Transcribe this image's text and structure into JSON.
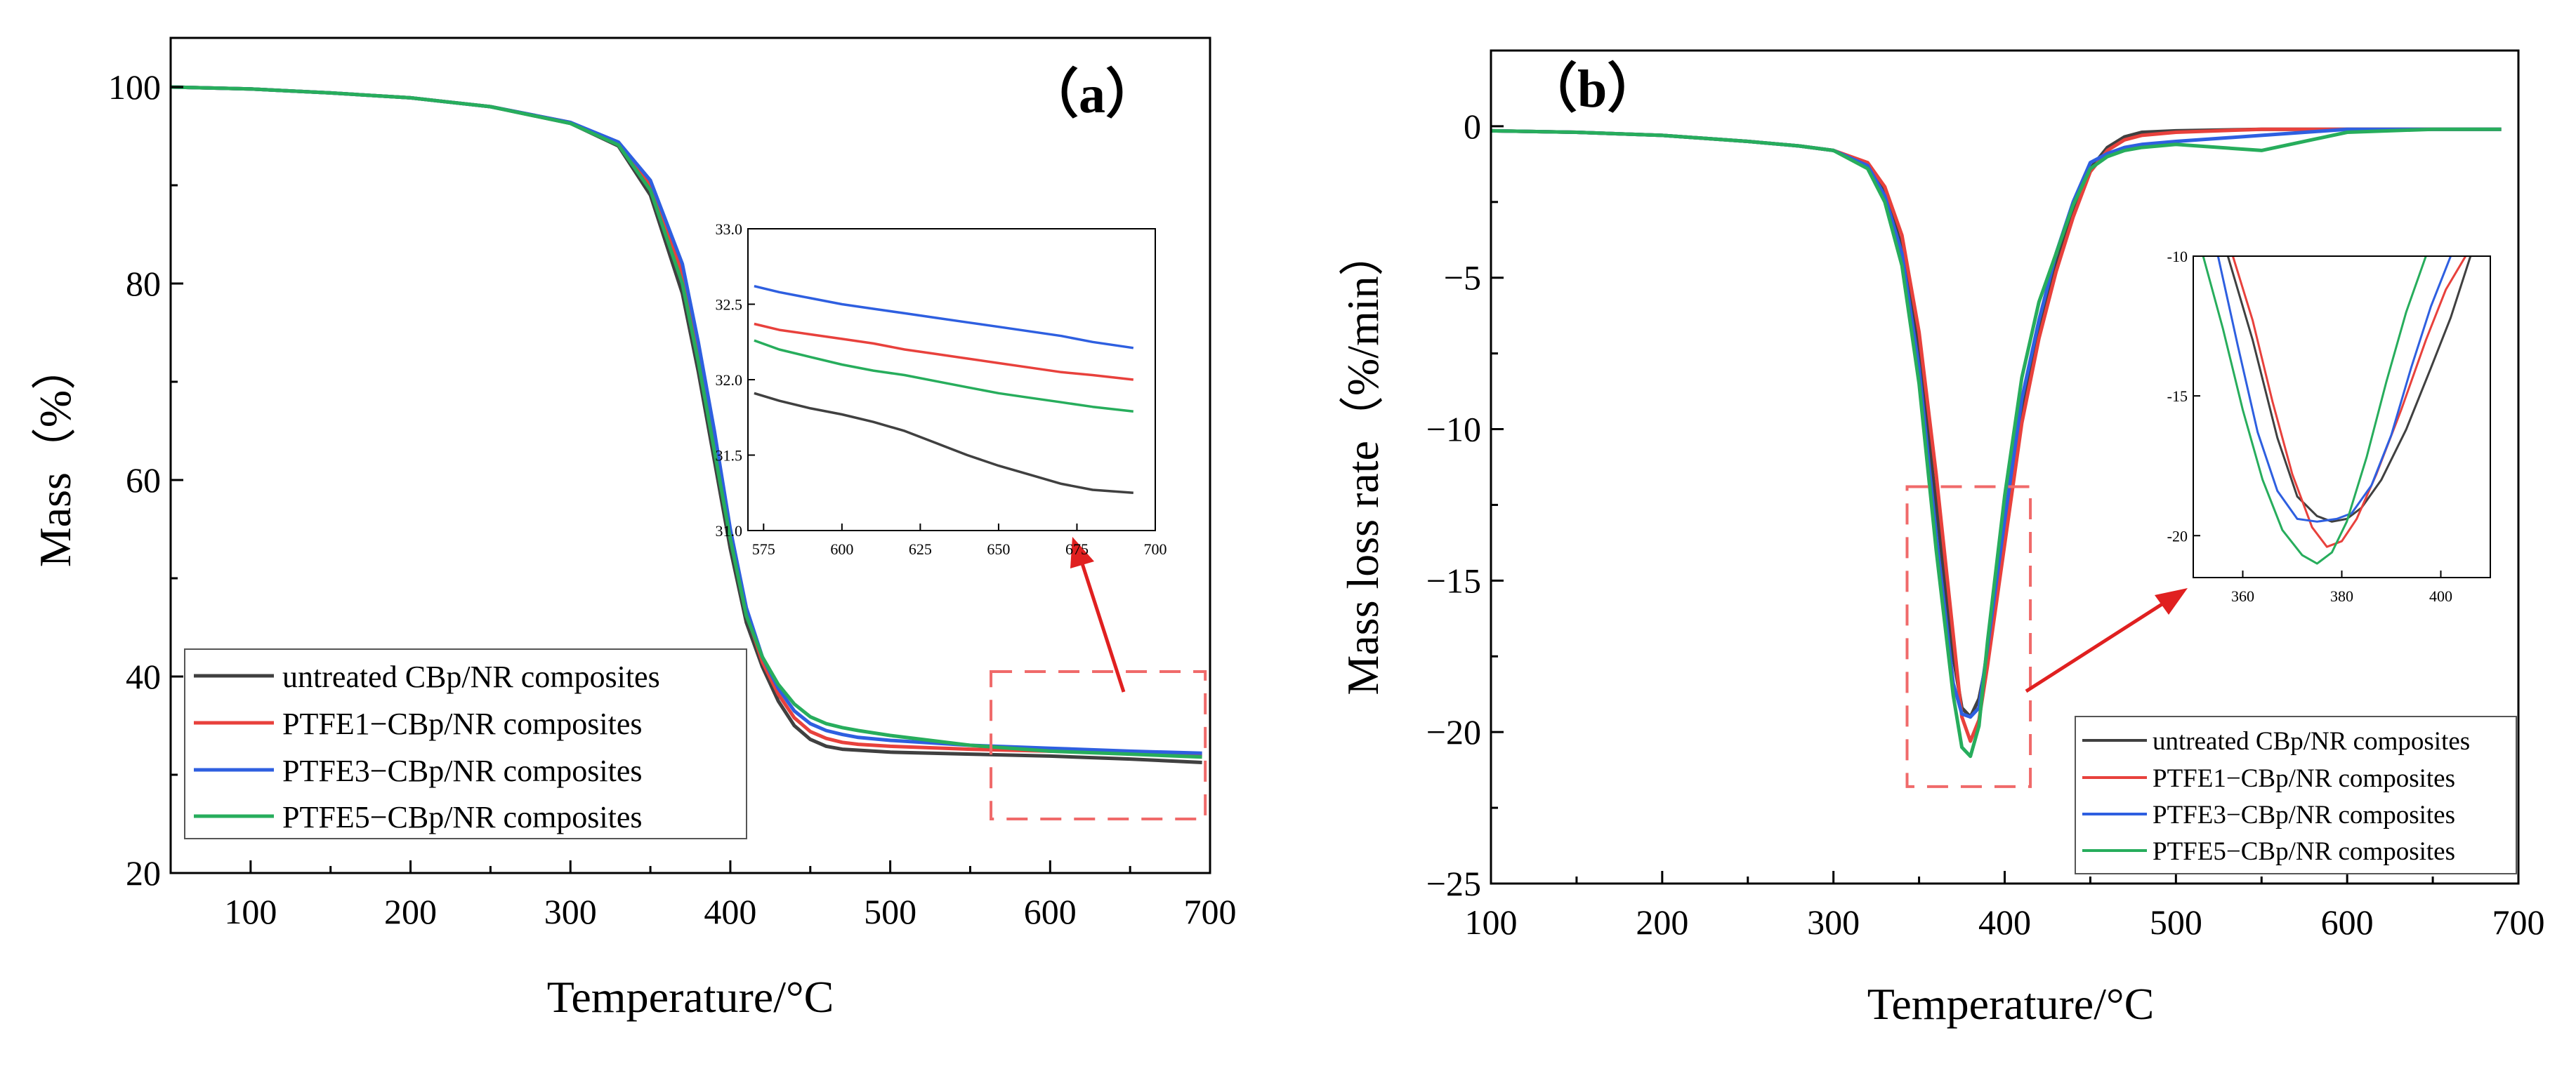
{
  "colors": {
    "untreated": "#404040",
    "ptfe1": "#e8413c",
    "ptfe3": "#2e5fe0",
    "ptfe5": "#27ad5c",
    "zoom_box": "#f06a6a",
    "arrow": "#e02020"
  },
  "chart_data": [
    {
      "type": "line",
      "panel_label": "（a）",
      "xlabel": "Temperature/°C",
      "ylabel": "Mass（%）",
      "xlim": [
        50,
        700
      ],
      "ylim": [
        20,
        105
      ],
      "xticks": [
        100,
        200,
        300,
        400,
        500,
        600,
        700
      ],
      "yticks": [
        20,
        40,
        60,
        80,
        100
      ],
      "legend_position": "bottom-left",
      "series": [
        {
          "name": "untreated CBp/NR composites",
          "color_key": "untreated",
          "x": [
            50,
            100,
            150,
            200,
            250,
            300,
            330,
            350,
            370,
            380,
            390,
            400,
            410,
            420,
            430,
            440,
            450,
            460,
            470,
            480,
            500,
            550,
            600,
            650,
            695
          ],
          "y": [
            100,
            99.8,
            99.4,
            98.9,
            98.0,
            96.3,
            94.0,
            89,
            79,
            71,
            62,
            53,
            45.5,
            41.0,
            37.5,
            35.0,
            33.6,
            32.9,
            32.6,
            32.5,
            32.3,
            32.1,
            31.9,
            31.6,
            31.25
          ]
        },
        {
          "name": "PTFE1−CBp/NR composites",
          "color_key": "ptfe1",
          "x": [
            50,
            100,
            150,
            200,
            250,
            300,
            330,
            350,
            370,
            380,
            390,
            400,
            410,
            420,
            430,
            440,
            450,
            460,
            470,
            480,
            500,
            550,
            600,
            650,
            695
          ],
          "y": [
            100,
            99.8,
            99.4,
            98.9,
            98.0,
            96.4,
            94.3,
            90,
            81,
            73,
            64,
            54.5,
            46.5,
            41.5,
            38.2,
            35.8,
            34.4,
            33.7,
            33.3,
            33.1,
            32.9,
            32.6,
            32.4,
            32.2,
            32.0
          ]
        },
        {
          "name": "PTFE3−CBp/NR composites",
          "color_key": "ptfe3",
          "x": [
            50,
            100,
            150,
            200,
            250,
            300,
            330,
            350,
            370,
            380,
            390,
            400,
            410,
            420,
            430,
            440,
            450,
            460,
            470,
            480,
            500,
            550,
            600,
            650,
            695
          ],
          "y": [
            100,
            99.8,
            99.4,
            98.9,
            98.0,
            96.4,
            94.4,
            90.5,
            82,
            74,
            65,
            55,
            47,
            42.0,
            38.8,
            36.5,
            35.2,
            34.5,
            34.1,
            33.8,
            33.5,
            33.0,
            32.7,
            32.4,
            32.2
          ]
        },
        {
          "name": "PTFE5−CBp/NR composites",
          "color_key": "ptfe5",
          "x": [
            50,
            100,
            150,
            200,
            250,
            300,
            330,
            350,
            370,
            380,
            390,
            400,
            410,
            420,
            430,
            440,
            450,
            460,
            470,
            480,
            500,
            550,
            600,
            650,
            695
          ],
          "y": [
            100,
            99.8,
            99.4,
            98.9,
            98.0,
            96.3,
            94.1,
            89.5,
            80,
            72,
            63,
            54,
            46.2,
            42.0,
            39.2,
            37.2,
            35.9,
            35.2,
            34.8,
            34.5,
            34.0,
            33.0,
            32.4,
            32.1,
            31.8
          ]
        }
      ],
      "inset": {
        "xlim": [
          570,
          700
        ],
        "ylim": [
          31.0,
          33.0
        ],
        "xticks": [
          575,
          600,
          625,
          650,
          675,
          700
        ],
        "yticks": [
          31.0,
          31.5,
          32.0,
          32.5,
          33.0
        ],
        "xtick_labels": [
          "575",
          "600",
          "625",
          "650",
          "675",
          "700"
        ],
        "ytick_labels": [
          "31.0",
          "31.5",
          "32.0",
          "32.5",
          "33.0"
        ],
        "series": [
          {
            "color_key": "untreated",
            "x": [
              572,
              580,
              590,
              600,
              610,
              620,
              630,
              640,
              650,
              660,
              670,
              680,
              693
            ],
            "y": [
              31.91,
              31.86,
              31.81,
              31.77,
              31.72,
              31.66,
              31.58,
              31.5,
              31.43,
              31.37,
              31.31,
              31.27,
              31.25
            ]
          },
          {
            "color_key": "ptfe1",
            "x": [
              572,
              580,
              590,
              600,
              610,
              620,
              630,
              640,
              650,
              660,
              670,
              680,
              693
            ],
            "y": [
              32.37,
              32.33,
              32.3,
              32.27,
              32.24,
              32.2,
              32.17,
              32.14,
              32.11,
              32.08,
              32.05,
              32.03,
              32.0
            ]
          },
          {
            "color_key": "ptfe3",
            "x": [
              572,
              580,
              590,
              600,
              610,
              620,
              630,
              640,
              650,
              660,
              670,
              680,
              693
            ],
            "y": [
              32.62,
              32.58,
              32.54,
              32.5,
              32.47,
              32.44,
              32.41,
              32.38,
              32.35,
              32.32,
              32.29,
              32.25,
              32.21
            ]
          },
          {
            "color_key": "ptfe5",
            "x": [
              572,
              580,
              590,
              600,
              610,
              620,
              630,
              640,
              650,
              660,
              670,
              680,
              693
            ],
            "y": [
              32.26,
              32.2,
              32.15,
              32.1,
              32.06,
              32.03,
              31.99,
              31.95,
              31.91,
              31.88,
              31.85,
              31.82,
              31.79
            ]
          }
        ]
      },
      "zoom_region": {
        "x": [
          563,
          697
        ],
        "y": [
          25.5,
          40.5
        ]
      }
    },
    {
      "type": "line",
      "panel_label": "（b）",
      "xlabel": "Temperature/°C",
      "ylabel": "Mass loss rate（%/min）",
      "xlim": [
        100,
        700
      ],
      "ylim": [
        -25,
        2.5
      ],
      "xticks": [
        100,
        200,
        300,
        400,
        500,
        600,
        700
      ],
      "yticks": [
        -25,
        -20,
        -15,
        -10,
        -5,
        0
      ],
      "ytick_labels": [
        "−25",
        "−20",
        "−15",
        "−10",
        "−5",
        "0"
      ],
      "legend_position": "bottom-right",
      "series": [
        {
          "name": "untreated CBp/NR composites",
          "color_key": "untreated",
          "x": [
            100,
            150,
            200,
            250,
            280,
            300,
            320,
            330,
            340,
            350,
            360,
            370,
            375,
            380,
            385,
            390,
            400,
            410,
            420,
            430,
            440,
            450,
            460,
            470,
            480,
            500,
            550,
            600,
            650,
            690
          ],
          "y": [
            -0.15,
            -0.2,
            -0.3,
            -0.5,
            -0.65,
            -0.8,
            -1.3,
            -2.2,
            -4,
            -7.5,
            -12.5,
            -17.5,
            -19.2,
            -19.5,
            -18.9,
            -17.5,
            -13.5,
            -9.5,
            -6.8,
            -4.6,
            -2.8,
            -1.4,
            -0.7,
            -0.35,
            -0.2,
            -0.15,
            -0.1,
            -0.1,
            -0.1,
            -0.1
          ]
        },
        {
          "name": "PTFE1−CBp/NR composites",
          "color_key": "ptfe1",
          "x": [
            100,
            150,
            200,
            250,
            280,
            300,
            320,
            330,
            340,
            350,
            360,
            370,
            375,
            380,
            385,
            390,
            400,
            410,
            420,
            430,
            440,
            450,
            460,
            470,
            480,
            500,
            550,
            600,
            650,
            690
          ],
          "y": [
            -0.15,
            -0.2,
            -0.3,
            -0.5,
            -0.65,
            -0.8,
            -1.2,
            -2,
            -3.6,
            -6.8,
            -11.5,
            -16.8,
            -19.5,
            -20.3,
            -19.6,
            -17.8,
            -13.8,
            -9.8,
            -7,
            -4.8,
            -3,
            -1.5,
            -0.8,
            -0.45,
            -0.3,
            -0.2,
            -0.1,
            -0.1,
            -0.1,
            -0.1
          ]
        },
        {
          "name": "PTFE3−CBp/NR composites",
          "color_key": "ptfe3",
          "x": [
            100,
            150,
            200,
            250,
            280,
            300,
            320,
            330,
            340,
            350,
            360,
            370,
            375,
            380,
            385,
            390,
            400,
            410,
            420,
            430,
            440,
            450,
            460,
            470,
            480,
            500,
            550,
            600,
            650,
            690
          ],
          "y": [
            -0.15,
            -0.2,
            -0.3,
            -0.5,
            -0.65,
            -0.8,
            -1.3,
            -2.3,
            -4.2,
            -8,
            -13.5,
            -18.4,
            -19.4,
            -19.5,
            -19.2,
            -17.2,
            -13,
            -9,
            -6.4,
            -4.2,
            -2.5,
            -1.2,
            -0.9,
            -0.7,
            -0.6,
            -0.5,
            -0.3,
            -0.1,
            -0.1,
            -0.1
          ]
        },
        {
          "name": "PTFE5−CBp/NR composites",
          "color_key": "ptfe5",
          "x": [
            100,
            150,
            200,
            250,
            280,
            300,
            320,
            330,
            340,
            350,
            360,
            370,
            375,
            380,
            385,
            390,
            400,
            410,
            420,
            430,
            440,
            450,
            460,
            470,
            480,
            500,
            550,
            600,
            650,
            690
          ],
          "y": [
            -0.15,
            -0.2,
            -0.3,
            -0.5,
            -0.65,
            -0.8,
            -1.4,
            -2.5,
            -4.6,
            -8.5,
            -14,
            -18.8,
            -20.5,
            -20.8,
            -19.8,
            -17,
            -12.2,
            -8.3,
            -5.8,
            -4.2,
            -2.6,
            -1.4,
            -1.0,
            -0.8,
            -0.7,
            -0.6,
            -0.8,
            -0.2,
            -0.1,
            -0.1
          ]
        }
      ],
      "inset": {
        "xlim": [
          350,
          410
        ],
        "ylim": [
          -21.5,
          -10
        ],
        "xticks": [
          360,
          380,
          400
        ],
        "yticks": [
          -20,
          -15,
          -10
        ],
        "xtick_labels": [
          "360",
          "380",
          "400"
        ],
        "ytick_labels": [
          "-20",
          "-15",
          "-10"
        ],
        "series": [
          {
            "color_key": "untreated",
            "x": [
              357,
              362,
              367,
              371,
              375,
              378,
              381,
              384,
              388,
              393,
              398,
              402,
              406
            ],
            "y": [
              -10,
              -13,
              -16.5,
              -18.6,
              -19.3,
              -19.5,
              -19.4,
              -19.0,
              -18.0,
              -16.2,
              -14.0,
              -12.2,
              -10
            ]
          },
          {
            "color_key": "ptfe1",
            "x": [
              358,
              362,
              366,
              370,
              374,
              377,
              380,
              383,
              387,
              392,
              397,
              401,
              405
            ],
            "y": [
              -10,
              -12.3,
              -15.2,
              -17.8,
              -19.7,
              -20.4,
              -20.2,
              -19.4,
              -17.8,
              -15.5,
              -13.0,
              -11.2,
              -10
            ]
          },
          {
            "color_key": "ptfe3",
            "x": [
              355,
              359,
              363,
              367,
              371,
              375,
              379,
              382,
              386,
              390,
              394,
              398,
              402
            ],
            "y": [
              -10,
              -13.2,
              -16.3,
              -18.4,
              -19.4,
              -19.5,
              -19.4,
              -19.2,
              -18.2,
              -16.4,
              -14.0,
              -11.8,
              -10
            ]
          },
          {
            "color_key": "ptfe5",
            "x": [
              352,
              356,
              360,
              364,
              368,
              372,
              375,
              378,
              381,
              385,
              389,
              393,
              397
            ],
            "y": [
              -10,
              -12.6,
              -15.5,
              -18.0,
              -19.8,
              -20.7,
              -21.0,
              -20.6,
              -19.5,
              -17.2,
              -14.5,
              -12.0,
              -10
            ]
          }
        ]
      },
      "zoom_region": {
        "x": [
          343,
          415
        ],
        "y": [
          -21.8,
          -11.9
        ]
      }
    }
  ]
}
